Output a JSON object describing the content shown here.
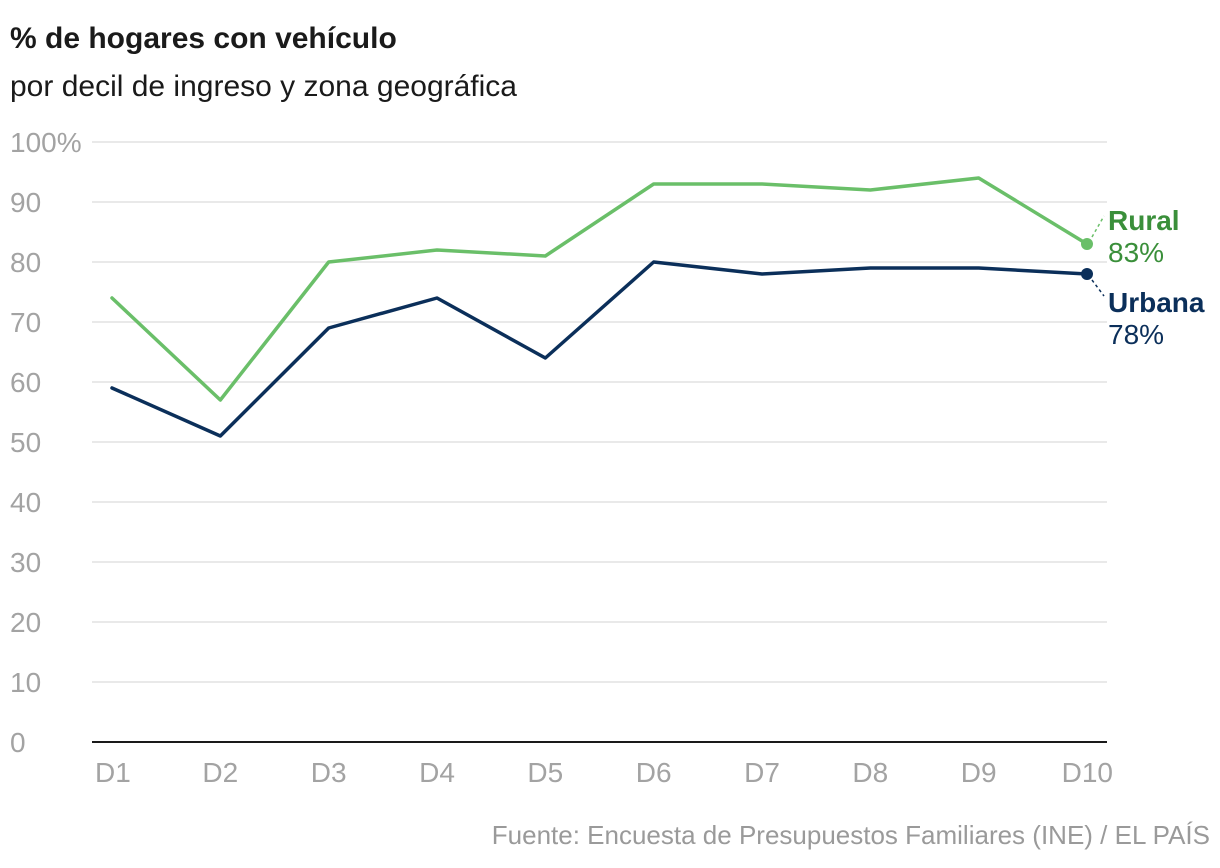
{
  "chart_data": {
    "type": "line",
    "title": "% de hogares con vehículo",
    "subtitle": "por decil de ingreso y zona geográfica",
    "categories": [
      "D1",
      "D2",
      "D3",
      "D4",
      "D5",
      "D6",
      "D7",
      "D8",
      "D9",
      "D10"
    ],
    "ylim": [
      0,
      100
    ],
    "yticks": [
      0,
      10,
      20,
      30,
      40,
      50,
      60,
      70,
      80,
      90,
      100
    ],
    "ytick_labels": [
      "0",
      "10",
      "20",
      "30",
      "40",
      "50",
      "60",
      "70",
      "80",
      "90",
      "100%"
    ],
    "grid": true,
    "series": [
      {
        "name": "Rural",
        "color": "#6abf69",
        "label_color": "#3a8f3a",
        "values": [
          74,
          57,
          80,
          82,
          81,
          93,
          93,
          92,
          94,
          83
        ],
        "end_label": "83%"
      },
      {
        "name": "Urbana",
        "color": "#0b2f5a",
        "label_color": "#0b2f5a",
        "values": [
          59,
          51,
          69,
          74,
          64,
          80,
          78,
          79,
          79,
          78
        ],
        "end_label": "78%"
      }
    ],
    "source": "Fuente: Encuesta de Presupuestos Familiares (INE) / EL PAÍS"
  }
}
